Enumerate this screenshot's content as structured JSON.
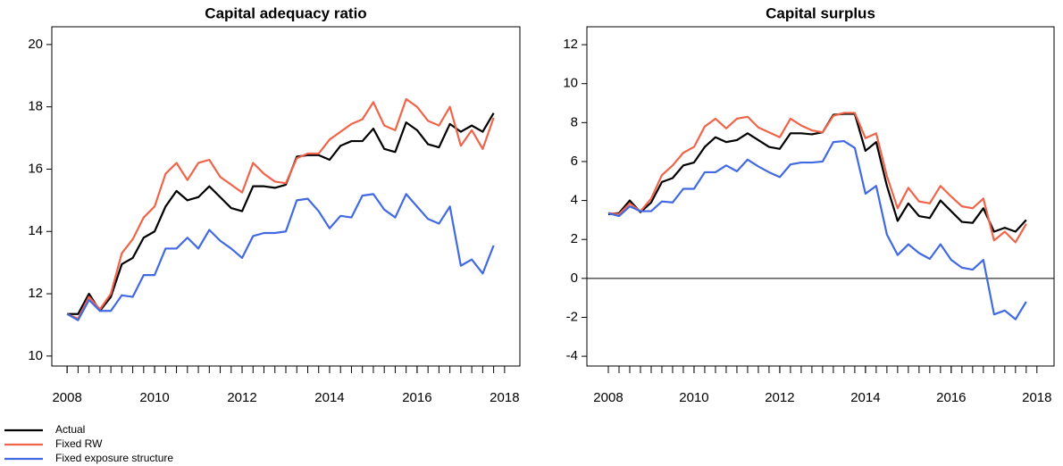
{
  "chart_data": [
    {
      "type": "line",
      "title": "Capital adequacy ratio",
      "x": [
        2008,
        2008.25,
        2008.5,
        2008.75,
        2009,
        2009.25,
        2009.5,
        2009.75,
        2010,
        2010.25,
        2010.5,
        2010.75,
        2011,
        2011.25,
        2011.5,
        2011.75,
        2012,
        2012.25,
        2012.5,
        2012.75,
        2013,
        2013.25,
        2013.5,
        2013.75,
        2014,
        2014.25,
        2014.5,
        2014.75,
        2015,
        2015.25,
        2015.5,
        2015.75,
        2016,
        2016.25,
        2016.5,
        2016.75,
        2017,
        2017.25,
        2017.5,
        2017.75
      ],
      "series": [
        {
          "name": "Actual",
          "color": "#000000",
          "values": [
            11.35,
            11.35,
            12.0,
            11.45,
            11.9,
            12.95,
            13.15,
            13.8,
            14.0,
            14.8,
            15.3,
            15.0,
            15.1,
            15.45,
            15.1,
            14.75,
            14.65,
            15.45,
            15.45,
            15.4,
            15.5,
            16.4,
            16.45,
            16.45,
            16.3,
            16.75,
            16.9,
            16.9,
            17.3,
            16.65,
            16.55,
            17.5,
            17.25,
            16.8,
            16.7,
            17.45,
            17.2,
            17.4,
            17.2,
            17.8
          ]
        },
        {
          "name": "Fixed RW",
          "color": "#f0644a",
          "values": [
            11.35,
            11.2,
            11.9,
            11.5,
            12.0,
            13.3,
            13.75,
            14.45,
            14.8,
            15.85,
            16.2,
            15.65,
            16.2,
            16.3,
            15.75,
            15.5,
            15.25,
            16.2,
            15.85,
            15.6,
            15.55,
            16.35,
            16.5,
            16.5,
            16.95,
            17.2,
            17.45,
            17.6,
            18.15,
            17.4,
            17.25,
            18.25,
            18.0,
            17.55,
            17.4,
            18.0,
            16.75,
            17.25,
            16.65,
            17.65
          ]
        },
        {
          "name": "Fixed exposure structure",
          "color": "#4169e1",
          "values": [
            11.35,
            11.15,
            11.8,
            11.45,
            11.45,
            11.95,
            11.9,
            12.6,
            12.6,
            13.45,
            13.45,
            13.8,
            13.45,
            14.05,
            13.7,
            13.45,
            13.15,
            13.85,
            13.95,
            13.95,
            14.0,
            15.0,
            15.05,
            14.65,
            14.1,
            14.5,
            14.45,
            15.15,
            15.2,
            14.7,
            14.45,
            15.2,
            14.8,
            14.4,
            14.25,
            14.8,
            12.9,
            13.1,
            12.65,
            13.55
          ]
        }
      ],
      "xlim": [
        2007.65,
        2018.35
      ],
      "xticks": [
        2008,
        2010,
        2012,
        2014,
        2016,
        2018
      ],
      "ylim": [
        9.68,
        20.57
      ],
      "yticks": [
        10,
        12,
        14,
        16,
        18,
        20
      ]
    },
    {
      "type": "line",
      "title": "Capital surplus",
      "x": [
        2008,
        2008.25,
        2008.5,
        2008.75,
        2009,
        2009.25,
        2009.5,
        2009.75,
        2010,
        2010.25,
        2010.5,
        2010.75,
        2011,
        2011.25,
        2011.5,
        2011.75,
        2012,
        2012.25,
        2012.5,
        2012.75,
        2013,
        2013.25,
        2013.5,
        2013.75,
        2014,
        2014.25,
        2014.5,
        2014.75,
        2015,
        2015.25,
        2015.5,
        2015.75,
        2016,
        2016.25,
        2016.5,
        2016.75,
        2017,
        2017.25,
        2017.5,
        2017.75
      ],
      "series": [
        {
          "name": "Actual",
          "color": "#000000",
          "values": [
            3.3,
            3.35,
            4.0,
            3.4,
            3.9,
            4.95,
            5.15,
            5.8,
            5.95,
            6.75,
            7.25,
            7.0,
            7.1,
            7.45,
            7.1,
            6.75,
            6.65,
            7.45,
            7.45,
            7.4,
            7.5,
            8.4,
            8.45,
            8.45,
            6.55,
            7.0,
            4.75,
            2.95,
            3.85,
            3.2,
            3.1,
            4.0,
            3.45,
            2.9,
            2.85,
            3.6,
            2.4,
            2.6,
            2.4,
            3.0
          ]
        },
        {
          "name": "Fixed RW",
          "color": "#f0644a",
          "values": [
            3.35,
            3.3,
            3.85,
            3.45,
            4.1,
            5.3,
            5.8,
            6.45,
            6.75,
            7.8,
            8.2,
            7.7,
            8.2,
            8.3,
            7.75,
            7.5,
            7.25,
            8.2,
            7.85,
            7.6,
            7.5,
            8.35,
            8.5,
            8.5,
            7.2,
            7.45,
            5.25,
            3.6,
            4.65,
            3.95,
            3.85,
            4.75,
            4.2,
            3.7,
            3.6,
            4.1,
            1.95,
            2.4,
            1.85,
            2.8
          ]
        },
        {
          "name": "Fixed exposure structure",
          "color": "#4169e1",
          "values": [
            3.35,
            3.2,
            3.7,
            3.45,
            3.45,
            3.95,
            3.9,
            4.6,
            4.6,
            5.45,
            5.45,
            5.8,
            5.5,
            6.1,
            5.75,
            5.45,
            5.2,
            5.85,
            5.95,
            5.95,
            6.0,
            7.0,
            7.05,
            6.7,
            4.35,
            4.75,
            2.25,
            1.2,
            1.75,
            1.3,
            1.0,
            1.75,
            0.95,
            0.55,
            0.45,
            0.95,
            -1.85,
            -1.65,
            -2.1,
            -1.2
          ]
        }
      ],
      "xlim": [
        2007.5,
        2018.4
      ],
      "xticks": [
        2008,
        2010,
        2012,
        2014,
        2016,
        2018
      ],
      "ylim": [
        -4.5,
        12.92
      ],
      "yticks": [
        -4,
        -2,
        0,
        2,
        4,
        6,
        8,
        10,
        12
      ],
      "hline": 0
    }
  ]
}
